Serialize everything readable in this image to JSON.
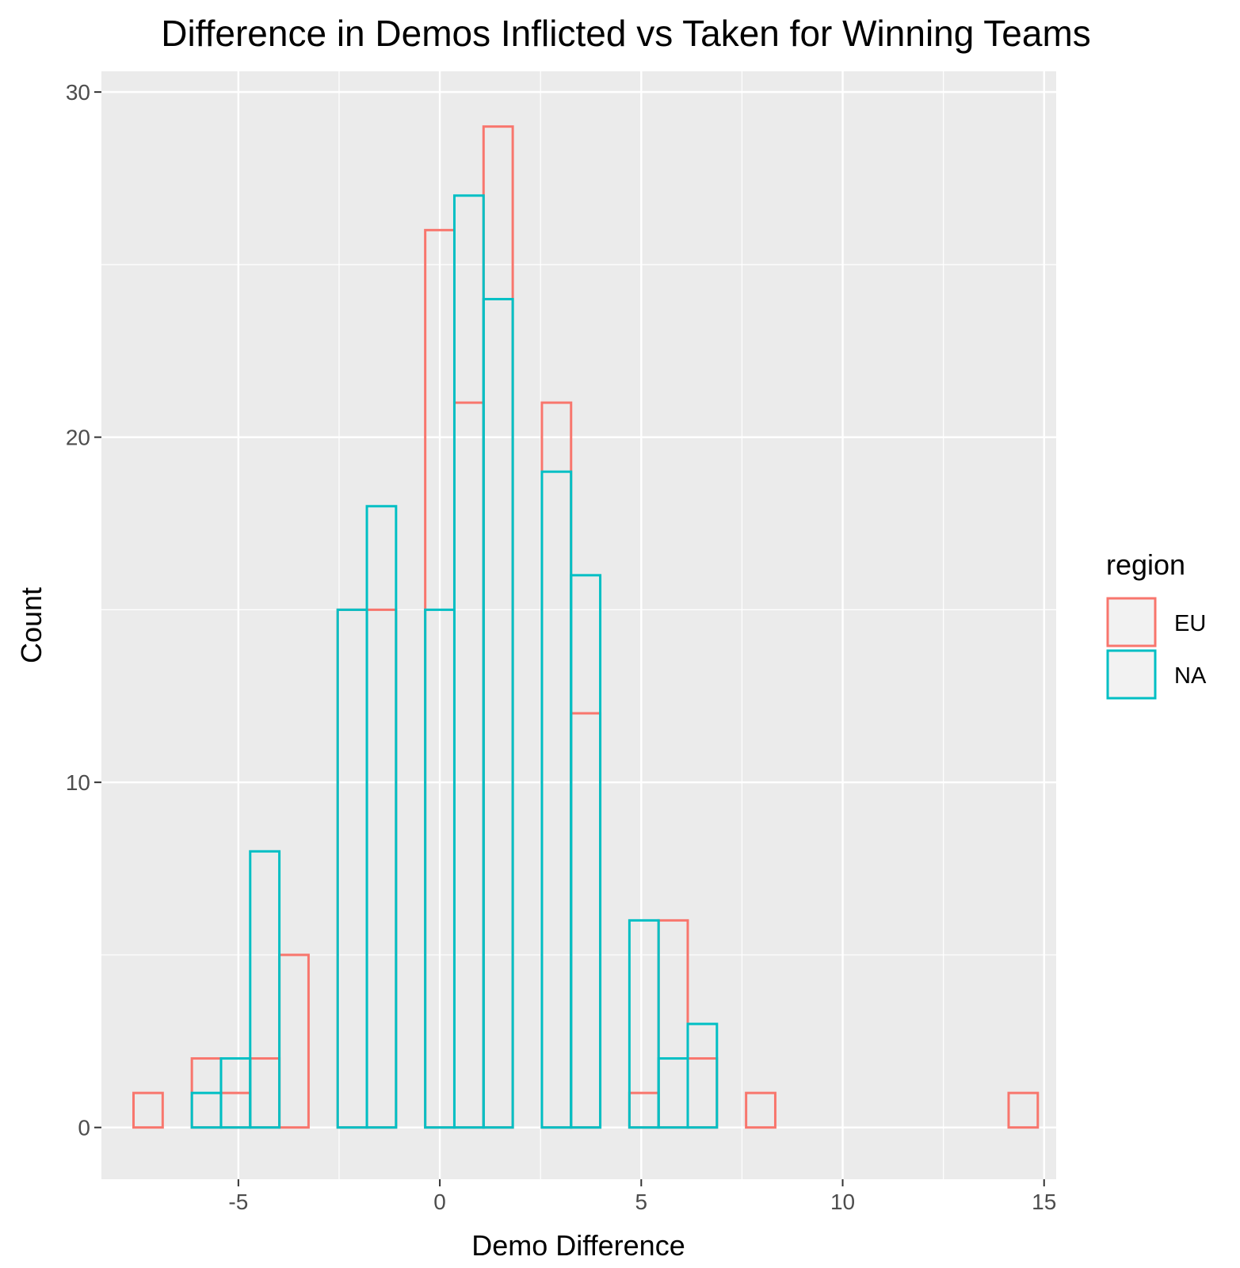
{
  "chart_data": {
    "type": "histogram",
    "title": "Difference in Demos Inflicted vs Taken for Winning Teams",
    "xlabel": "Demo Difference",
    "ylabel": "Count",
    "xlim": [
      -8.4,
      15.3
    ],
    "ylim": [
      -1.5,
      30.6
    ],
    "x_ticks": [
      -5,
      0,
      5,
      10,
      15
    ],
    "y_ticks": [
      0,
      10,
      20,
      30
    ],
    "grid": true,
    "bin_width": 0.7241,
    "bin_start": -7.6034,
    "legend": {
      "title": "region",
      "position": "right"
    },
    "series": [
      {
        "name": "EU",
        "color": "#F8766D",
        "counts": [
          1,
          0,
          2,
          1,
          2,
          5,
          0,
          15,
          15,
          0,
          26,
          21,
          29,
          0,
          21,
          12,
          0,
          1,
          6,
          2,
          0,
          1,
          0,
          0,
          0,
          0,
          0,
          0,
          0,
          0,
          1
        ]
      },
      {
        "name": "NA",
        "color": "#00BFC4",
        "counts": [
          0,
          0,
          1,
          2,
          8,
          0,
          0,
          15,
          18,
          0,
          15,
          27,
          24,
          0,
          19,
          16,
          0,
          6,
          2,
          3,
          0,
          0,
          0,
          0,
          0,
          0,
          0,
          0,
          0,
          0,
          0
        ]
      }
    ]
  }
}
